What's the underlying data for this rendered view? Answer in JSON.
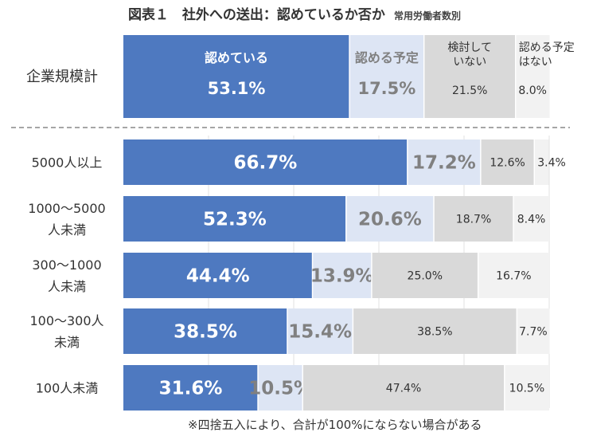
{
  "chart_data": {
    "type": "bar",
    "orientation": "horizontal",
    "stacked": true,
    "title": "図表１　社外への送出：認めているか否か",
    "subtitle": "常用労働者数別",
    "xlim": [
      0,
      100
    ],
    "series": [
      {
        "name": "認めている",
        "color": "#4e79c0"
      },
      {
        "name": "認める予定",
        "color": "#dde5f4"
      },
      {
        "name": "検討していない",
        "label_lines": [
          "検討して",
          "いない"
        ],
        "color": "#d9d9d9"
      },
      {
        "name": "認める予定はない",
        "label_lines": [
          "認める予定",
          "はない"
        ],
        "color": "#f2f2f2"
      }
    ],
    "rows": [
      {
        "label_lines": [
          "企業規模計"
        ],
        "values": [
          53.1,
          17.5,
          21.5,
          8.0
        ],
        "labels": [
          "53.1%",
          "17.5%",
          "21.5%",
          "8.0%"
        ]
      },
      {
        "label_lines": [
          "5000人以上"
        ],
        "values": [
          66.7,
          17.2,
          12.6,
          3.4
        ],
        "labels": [
          "66.7%",
          "17.2%",
          "12.6%",
          "3.4%"
        ]
      },
      {
        "label_lines": [
          "1000～5000",
          "人未満"
        ],
        "values": [
          52.3,
          20.6,
          18.7,
          8.4
        ],
        "labels": [
          "52.3%",
          "20.6%",
          "18.7%",
          "8.4%"
        ]
      },
      {
        "label_lines": [
          "300～1000",
          "人未満"
        ],
        "values": [
          44.4,
          13.9,
          25.0,
          16.7
        ],
        "labels": [
          "44.4%",
          "13.9%",
          "25.0%",
          "16.7%"
        ]
      },
      {
        "label_lines": [
          "100～300人",
          "未満"
        ],
        "values": [
          38.5,
          15.4,
          38.5,
          7.7
        ],
        "labels": [
          "38.5%",
          "15.4%",
          "38.5%",
          "7.7%"
        ]
      },
      {
        "label_lines": [
          "100人未満"
        ],
        "values": [
          31.6,
          10.5,
          47.4,
          10.5
        ],
        "labels": [
          "31.6%",
          "10.5%",
          "47.4%",
          "10.5%"
        ]
      }
    ],
    "footnote": "※四捨五入により、合計が100%にならない場合がある",
    "grid": true
  }
}
